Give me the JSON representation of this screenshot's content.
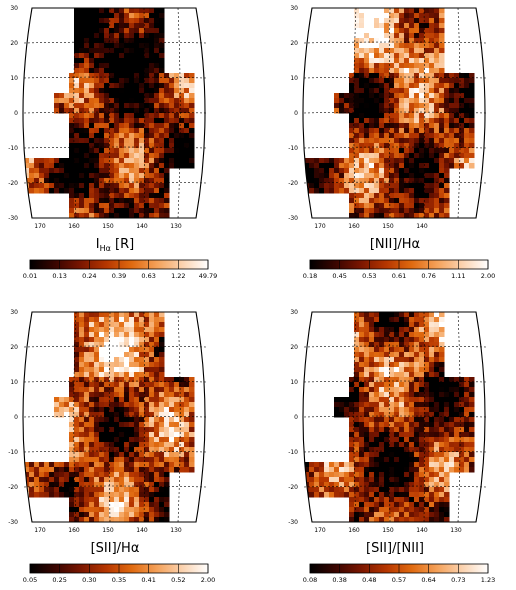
{
  "panels": [
    {
      "id": "ha",
      "title": "I",
      "title_sub": "Hα",
      "title_suffix": " [R]",
      "lat_ticks": [
        "30",
        "20",
        "10",
        "0",
        "-10",
        "-20",
        "-30"
      ],
      "lon_ticks": [
        "170",
        "160",
        "150",
        "140",
        "130"
      ],
      "colorbar_ticks": [
        "0.01",
        "0.13",
        "0.24",
        "0.39",
        "0.63",
        "1.22",
        "49.79"
      ],
      "seed": 11
    },
    {
      "id": "nii",
      "title": "[NII]/Hα",
      "lat_ticks": [
        "30",
        "20",
        "10",
        "0",
        "-10",
        "-20",
        "-30"
      ],
      "lon_ticks": [
        "170",
        "160",
        "150",
        "140"
      ],
      "colorbar_ticks": [
        "0.18",
        "0.45",
        "0.53",
        "0.61",
        "0.76",
        "1.11",
        "2.00"
      ],
      "seed": 23
    },
    {
      "id": "sii-ha",
      "title": "[SII]/Hα",
      "lat_ticks": [
        "30",
        "20",
        "10",
        "0",
        "-10",
        "-20",
        "-30"
      ],
      "lon_ticks": [
        "170",
        "160",
        "150",
        "140",
        "130"
      ],
      "colorbar_ticks": [
        "0.05",
        "0.25",
        "0.30",
        "0.35",
        "0.41",
        "0.52",
        "2.00"
      ],
      "seed": 37
    },
    {
      "id": "sii-nii",
      "title": "[SII]/[NII]",
      "lat_ticks": [
        "30",
        "20",
        "10",
        "0",
        "-10",
        "-20",
        "-30"
      ],
      "lon_ticks": [
        "170",
        "160",
        "150",
        "140",
        "130"
      ],
      "colorbar_ticks": [
        "0.08",
        "0.38",
        "0.48",
        "0.57",
        "0.64",
        "0.73",
        "1.23"
      ],
      "seed": 53
    }
  ],
  "colors": {
    "colormap": [
      "#000000",
      "#3a0500",
      "#7a1600",
      "#b63600",
      "#e06a10",
      "#f4a15a",
      "#fbd3b0",
      "#ffffff"
    ],
    "ink": "#000000",
    "background": "#ffffff"
  }
}
